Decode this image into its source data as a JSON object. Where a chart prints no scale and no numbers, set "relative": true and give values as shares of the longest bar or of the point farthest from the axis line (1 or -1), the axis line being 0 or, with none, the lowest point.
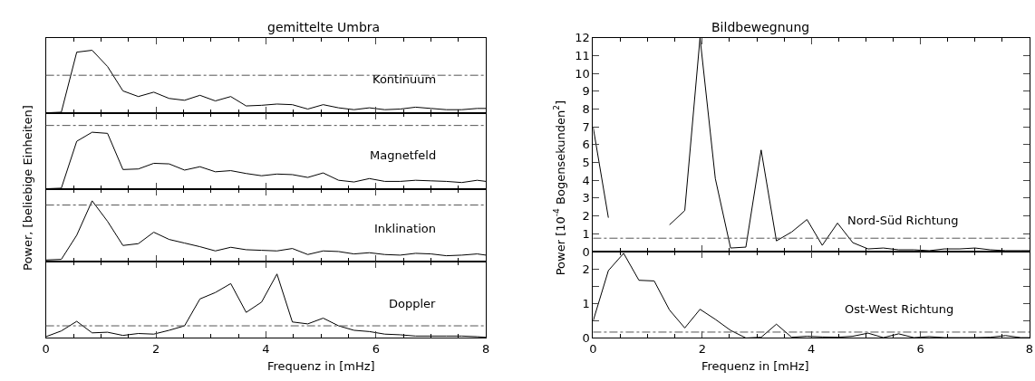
{
  "chart_data": [
    {
      "type": "line",
      "title": "gemittelte Umbra",
      "ylabel": "Power, [beliebige Einheiten]",
      "relative": true,
      "annotations": [
        "Kontinuum"
      ],
      "tick_labels": false,
      "xlim": [
        0,
        8
      ],
      "xticks": [
        0,
        2,
        4,
        6,
        8
      ],
      "x": [
        0,
        0.28,
        0.56,
        0.84,
        1.12,
        1.4,
        1.68,
        1.96,
        2.24,
        2.52,
        2.8,
        3.08,
        3.36,
        3.64,
        3.92,
        4.2,
        4.48,
        4.76,
        5.04,
        5.32,
        5.6,
        5.88,
        6.16,
        6.44,
        6.72,
        7.0,
        7.28,
        7.56,
        7.84,
        8.0
      ],
      "series": [
        {
          "color": "#000000",
          "values": [
            0,
            0.01,
            0.97,
            1,
            0.74,
            0.35,
            0.26,
            0.33,
            0.23,
            0.2,
            0.28,
            0.19,
            0.26,
            0.11,
            0.12,
            0.14,
            0.13,
            0.06,
            0.13,
            0.08,
            0.05,
            0.08,
            0.05,
            0.06,
            0.09,
            0.07,
            0.05,
            0.05,
            0.07,
            0.07
          ]
        }
      ],
      "ref_lines": [
        {
          "axis": "y",
          "value": 0.6,
          "color": "#555555",
          "line_style": "dashed"
        }
      ]
    },
    {
      "type": "line",
      "relative": true,
      "annotations": [
        "Magnetfeld"
      ],
      "tick_labels": false,
      "xlim": [
        0,
        8
      ],
      "xticks": [
        0,
        2,
        4,
        6,
        8
      ],
      "x": [
        0,
        0.28,
        0.56,
        0.84,
        1.12,
        1.4,
        1.68,
        1.96,
        2.24,
        2.52,
        2.8,
        3.08,
        3.36,
        3.64,
        3.92,
        4.2,
        4.48,
        4.76,
        5.04,
        5.32,
        5.6,
        5.88,
        6.16,
        6.44,
        6.72,
        7.0,
        7.28,
        7.56,
        7.84,
        8.0
      ],
      "series": [
        {
          "color": "#000000",
          "values": [
            0,
            0.01,
            0.84,
            1,
            0.98,
            0.34,
            0.35,
            0.45,
            0.44,
            0.33,
            0.39,
            0.3,
            0.32,
            0.27,
            0.23,
            0.26,
            0.25,
            0.2,
            0.28,
            0.15,
            0.12,
            0.18,
            0.13,
            0.13,
            0.15,
            0.14,
            0.13,
            0.11,
            0.15,
            0.13
          ]
        }
      ],
      "ref_lines": [
        {
          "axis": "y",
          "value": 1.12,
          "color": "#555555",
          "line_style": "dashed"
        }
      ]
    },
    {
      "type": "line",
      "relative": true,
      "annotations": [
        "Inklination"
      ],
      "tick_labels": false,
      "xlim": [
        0,
        8
      ],
      "xticks": [
        0,
        2,
        4,
        6,
        8
      ],
      "x": [
        0,
        0.28,
        0.56,
        0.84,
        1.12,
        1.4,
        1.68,
        1.96,
        2.24,
        2.52,
        2.8,
        3.08,
        3.36,
        3.64,
        3.92,
        4.2,
        4.48,
        4.76,
        5.04,
        5.32,
        5.6,
        5.88,
        6.16,
        6.44,
        6.72,
        7.0,
        7.28,
        7.56,
        7.84,
        8.0
      ],
      "series": [
        {
          "color": "#000000",
          "values": [
            0.02,
            0.03,
            0.43,
            1,
            0.66,
            0.26,
            0.29,
            0.48,
            0.36,
            0.3,
            0.24,
            0.17,
            0.23,
            0.19,
            0.18,
            0.17,
            0.21,
            0.11,
            0.17,
            0.16,
            0.12,
            0.14,
            0.11,
            0.1,
            0.13,
            0.12,
            0.09,
            0.1,
            0.12,
            0.1
          ]
        }
      ],
      "ref_lines": [
        {
          "axis": "y",
          "value": 0.93,
          "color": "#555555",
          "line_style": "dashed"
        }
      ]
    },
    {
      "type": "line",
      "xlabel": "Frequenz in [mHz]",
      "relative": true,
      "annotations": [
        "Doppler"
      ],
      "tick_labels": "x",
      "xlim": [
        0,
        8
      ],
      "xticks": [
        0,
        2,
        4,
        6,
        8
      ],
      "x": [
        0,
        0.28,
        0.56,
        0.84,
        1.12,
        1.4,
        1.68,
        1.96,
        2.24,
        2.52,
        2.8,
        3.08,
        3.36,
        3.64,
        3.92,
        4.2,
        4.48,
        4.76,
        5.04,
        5.32,
        5.6,
        5.88,
        6.16,
        6.44,
        6.72,
        7.0,
        7.28,
        7.56,
        7.84,
        8.0
      ],
      "series": [
        {
          "color": "#000000",
          "values": [
            0.02,
            0.11,
            0.26,
            0.08,
            0.09,
            0.04,
            0.07,
            0.06,
            0.12,
            0.19,
            0.61,
            0.71,
            0.85,
            0.4,
            0.56,
            1,
            0.25,
            0.22,
            0.31,
            0.19,
            0.12,
            0.1,
            0.06,
            0.05,
            0.03,
            0.03,
            0.03,
            0.03,
            0.02,
            0.01
          ]
        }
      ],
      "ref_lines": [
        {
          "axis": "y",
          "value": 0.19,
          "color": "#555555",
          "line_style": "dashed"
        }
      ]
    },
    {
      "type": "line",
      "title": "Bildbewegnung",
      "ylabel": "Power [10$^{-4}$ Bogensekunden$^{2}$]",
      "annotations": [
        "Nord-Süd Richtung"
      ],
      "tick_labels": "y",
      "xlim": [
        0,
        8
      ],
      "xticks": [
        0,
        2,
        4,
        6,
        8
      ],
      "ylim": [
        0,
        12
      ],
      "yticks": [
        0,
        1,
        2,
        3,
        4,
        5,
        6,
        7,
        8,
        9,
        10,
        11,
        12
      ],
      "x": [
        0,
        0.28,
        0.56,
        0.84,
        1.12,
        1.4,
        1.68,
        1.96,
        2.24,
        2.52,
        2.8,
        3.08,
        3.36,
        3.64,
        3.92,
        4.2,
        4.48,
        4.76,
        5.04,
        5.32,
        5.6,
        5.88,
        6.16,
        6.44,
        6.72,
        7.0,
        7.28,
        7.56,
        7.84,
        8.0
      ],
      "series": [
        {
          "color": "#000000",
          "values": [
            7.0,
            1.9,
            null,
            null,
            null,
            1.5,
            2.3,
            12,
            4.1,
            0.2,
            0.25,
            5.7,
            0.6,
            1.1,
            1.8,
            0.35,
            1.6,
            0.5,
            0.15,
            0.2,
            0.1,
            0.1,
            0.05,
            0.15,
            0.15,
            0.2,
            0.1,
            0.05,
            0.05,
            0.05
          ]
        }
      ],
      "ref_lines": [
        {
          "axis": "y",
          "value": 0.75,
          "color": "#555555",
          "line_style": "dashed"
        }
      ]
    },
    {
      "type": "line",
      "xlabel": "Frequenz in [mHz]",
      "annotations": [
        "Ost-West Richtung"
      ],
      "xlim": [
        0,
        8
      ],
      "xticks": [
        0,
        2,
        4,
        6,
        8
      ],
      "ylim": [
        0,
        2.5
      ],
      "yticks": [
        0,
        {
          "value": 0.5,
          "label": null
        },
        1,
        {
          "value": 1.5,
          "label": null
        },
        2
      ],
      "x": [
        0,
        0.28,
        0.56,
        0.84,
        1.12,
        1.4,
        1.68,
        1.96,
        2.24,
        2.52,
        2.8,
        3.08,
        3.36,
        3.64,
        3.92,
        4.2,
        4.48,
        4.76,
        5.04,
        5.32,
        5.6,
        5.88,
        6.16,
        6.44,
        6.72,
        7.0,
        7.28,
        7.56,
        7.84,
        8.0
      ],
      "series": [
        {
          "color": "#000000",
          "values": [
            0.49,
            1.95,
            2.45,
            1.67,
            1.65,
            0.81,
            0.29,
            0.83,
            0.54,
            0.22,
            0,
            0.02,
            0.4,
            0.02,
            0.05,
            0.03,
            0.02,
            0.05,
            0.14,
            0.01,
            0.12,
            0.01,
            0.04,
            0.01,
            0.01,
            0.01,
            0.02,
            0.07,
            0.01,
            0.01
          ]
        }
      ],
      "ref_lines": [
        {
          "axis": "y",
          "value": 0.17,
          "color": "#555555",
          "line_style": "dashed"
        }
      ]
    }
  ]
}
